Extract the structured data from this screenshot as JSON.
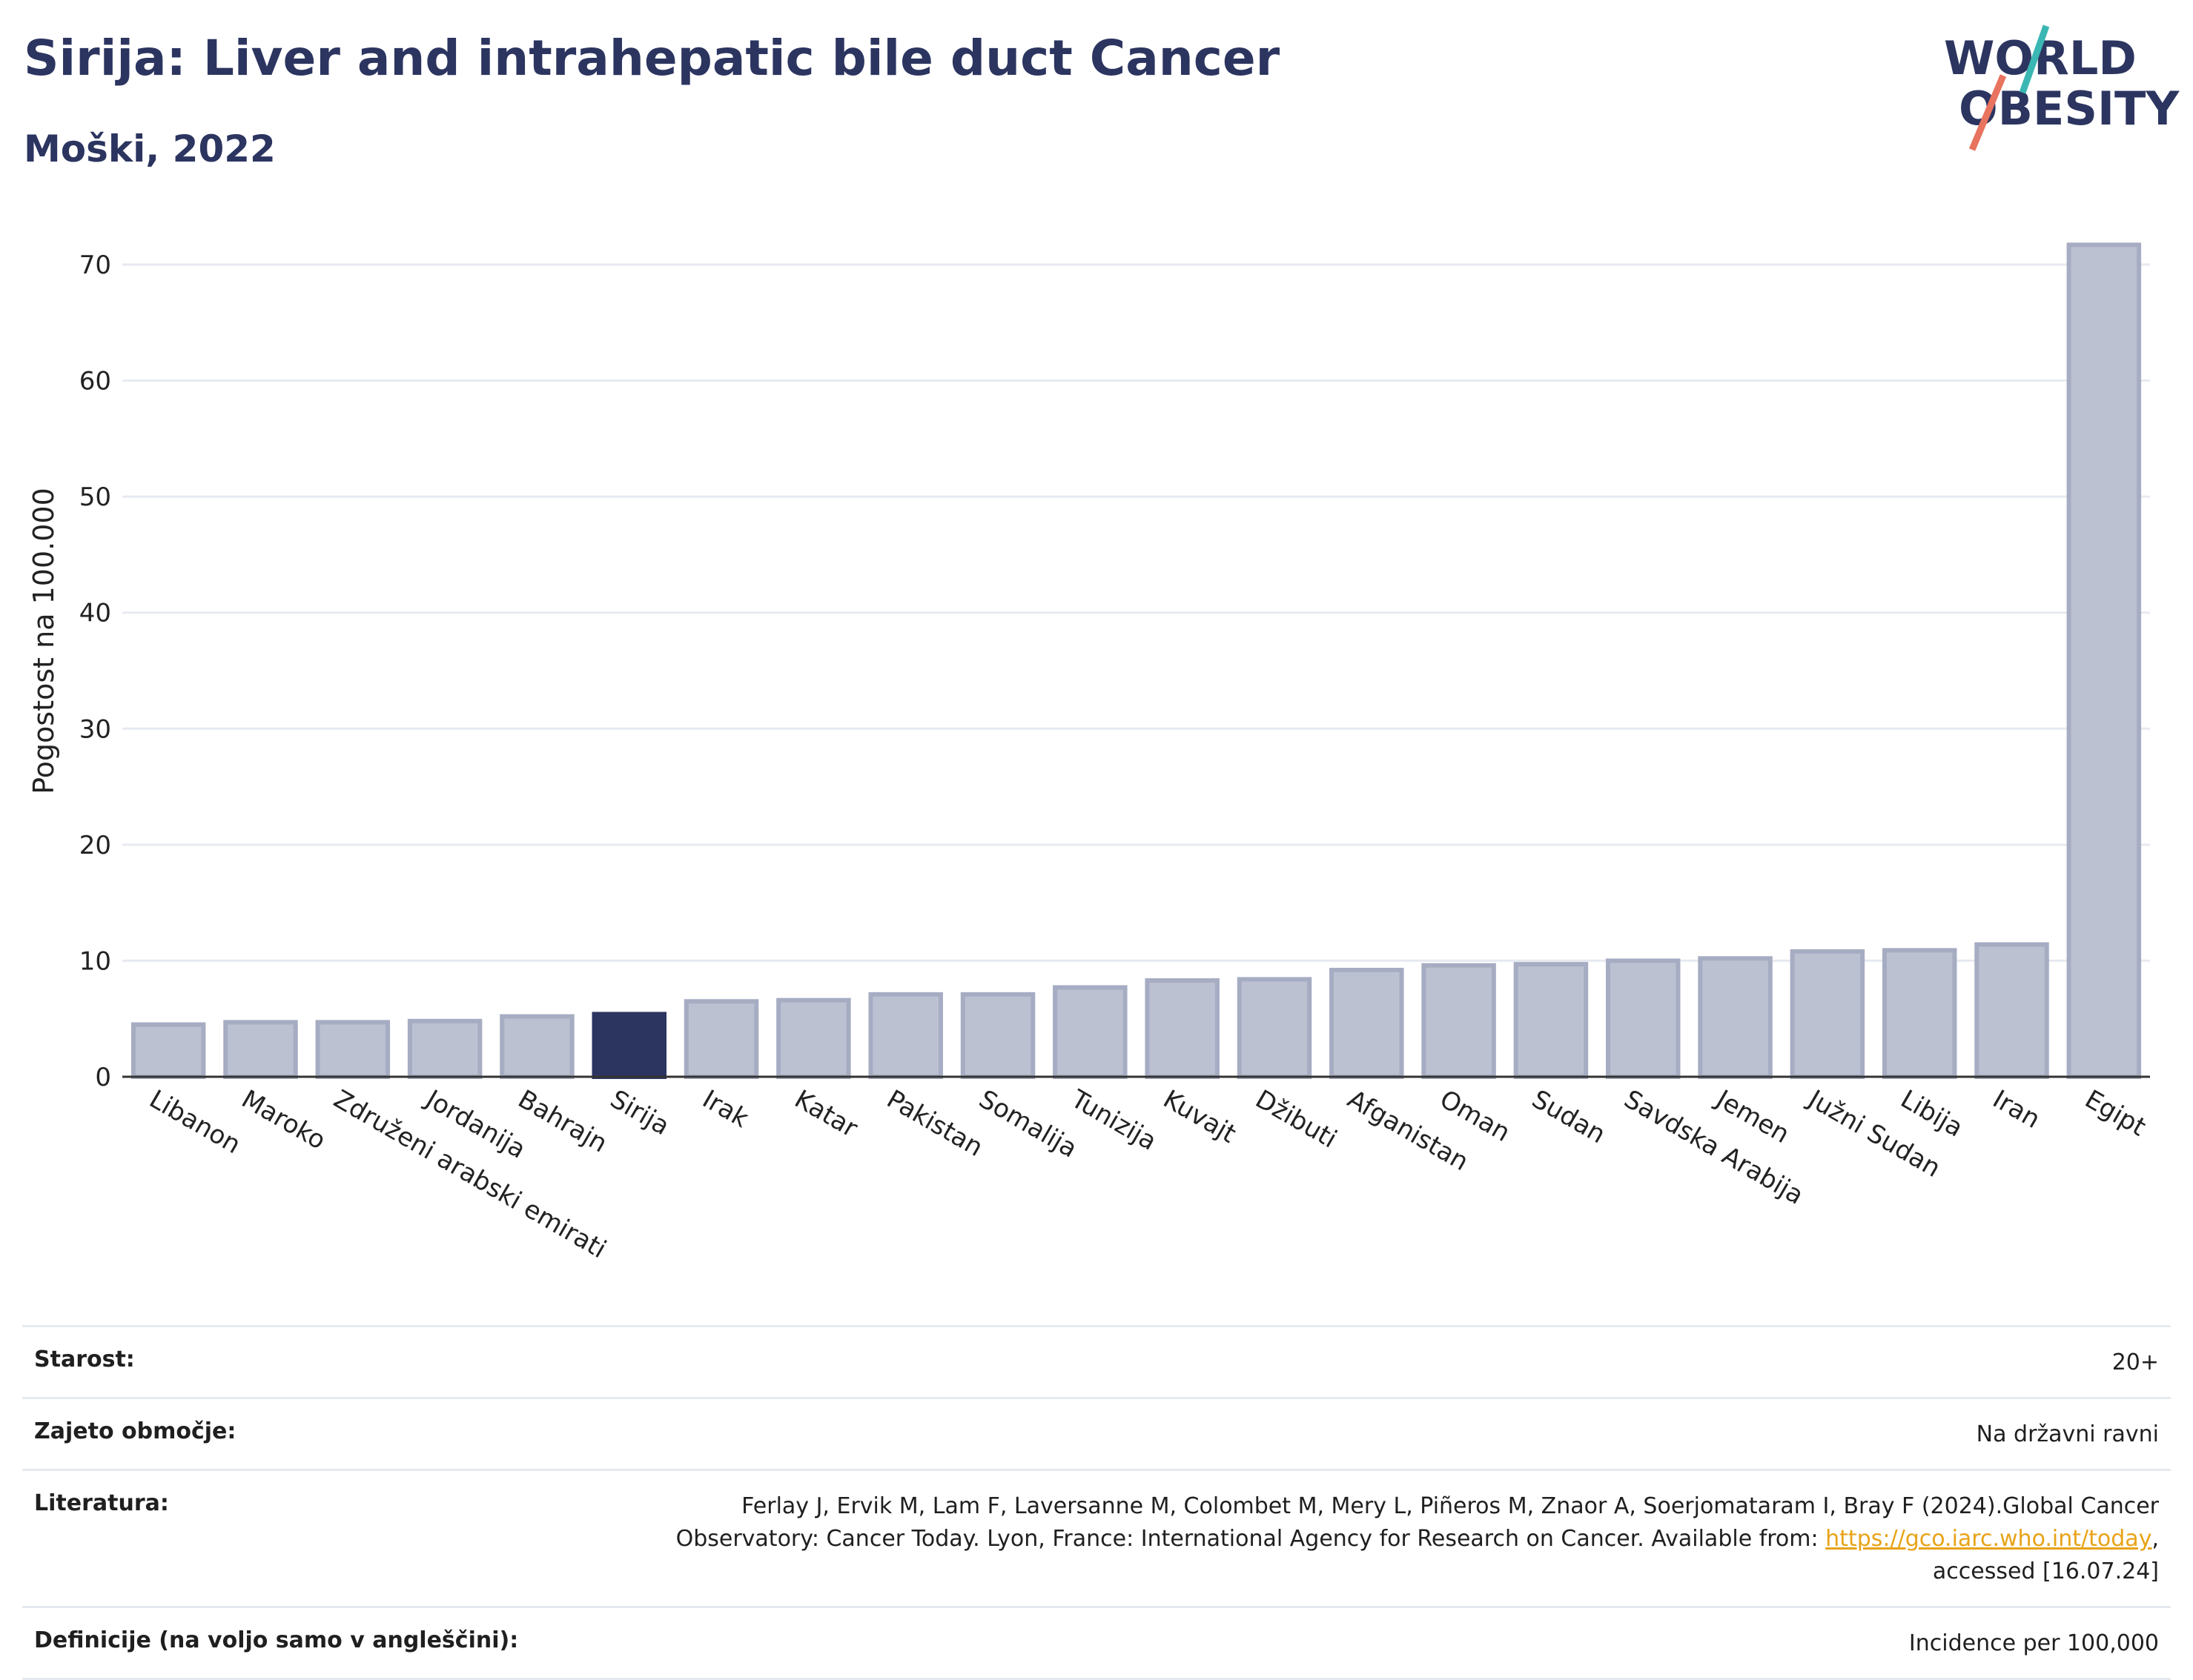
{
  "header": {
    "title": "Sirija: Liver and intrahepatic bile duct Cancer",
    "subtitle": "Moški, 2022",
    "logo_line1": "WORLD",
    "logo_line2": "OBESITY"
  },
  "colors": {
    "bar_default": "#bcc1d2",
    "bar_default_border": "#a6acc2",
    "bar_highlight": "#2c3560",
    "title": "#2c3560",
    "logo_text": "#2c3560",
    "logo_teal": "#3bb7b3",
    "logo_coral": "#e8735e",
    "link": "#e8a317"
  },
  "chart_data": {
    "type": "bar",
    "title": "Sirija: Liver and intrahepatic bile duct Cancer",
    "subtitle": "Moški, 2022",
    "ylabel": "Pogostost na 100.000",
    "xlabel": "",
    "ylim": [
      0,
      75
    ],
    "yticks": [
      0,
      10,
      20,
      30,
      40,
      50,
      60,
      70
    ],
    "grid": true,
    "highlight": "Sirija",
    "categories": [
      "Libanon",
      "Maroko",
      "Združeni arabski emirati",
      "Jordanija",
      "Bahrajn",
      "Sirija",
      "Irak",
      "Katar",
      "Pakistan",
      "Somalija",
      "Tunizija",
      "Kuvajt",
      "Džibuti",
      "Afganistan",
      "Oman",
      "Sudan",
      "Savdska Arabija",
      "Jemen",
      "Južni Sudan",
      "Libija",
      "Iran",
      "Egipt"
    ],
    "values": [
      4.5,
      4.7,
      4.7,
      4.8,
      5.2,
      5.4,
      6.5,
      6.6,
      7.1,
      7.1,
      7.7,
      8.3,
      8.4,
      9.2,
      9.6,
      9.7,
      10.0,
      10.2,
      10.8,
      10.9,
      11.4,
      71.7
    ]
  },
  "info": {
    "age_label": "Starost:",
    "age_value": "20+",
    "area_label": "Zajeto območje:",
    "area_value": "Na državni ravni",
    "lit_label": "Literatura:",
    "lit_text_1": "Ferlay J, Ervik M, Lam F, Laversanne M, Colombet M, Mery L, Piñeros M, Znaor A, Soerjomataram I, Bray F (2024).Global Cancer",
    "lit_text_2": "Observatory: Cancer Today. Lyon, France: International Agency for Research on Cancer. Available from:",
    "lit_link": "https://gco.iarc.who.int/today",
    "lit_text_3": "accessed [16.07.24]",
    "def_label": "Definicije (na voljo samo v angleščini):",
    "def_value": "Incidence per 100,000"
  }
}
